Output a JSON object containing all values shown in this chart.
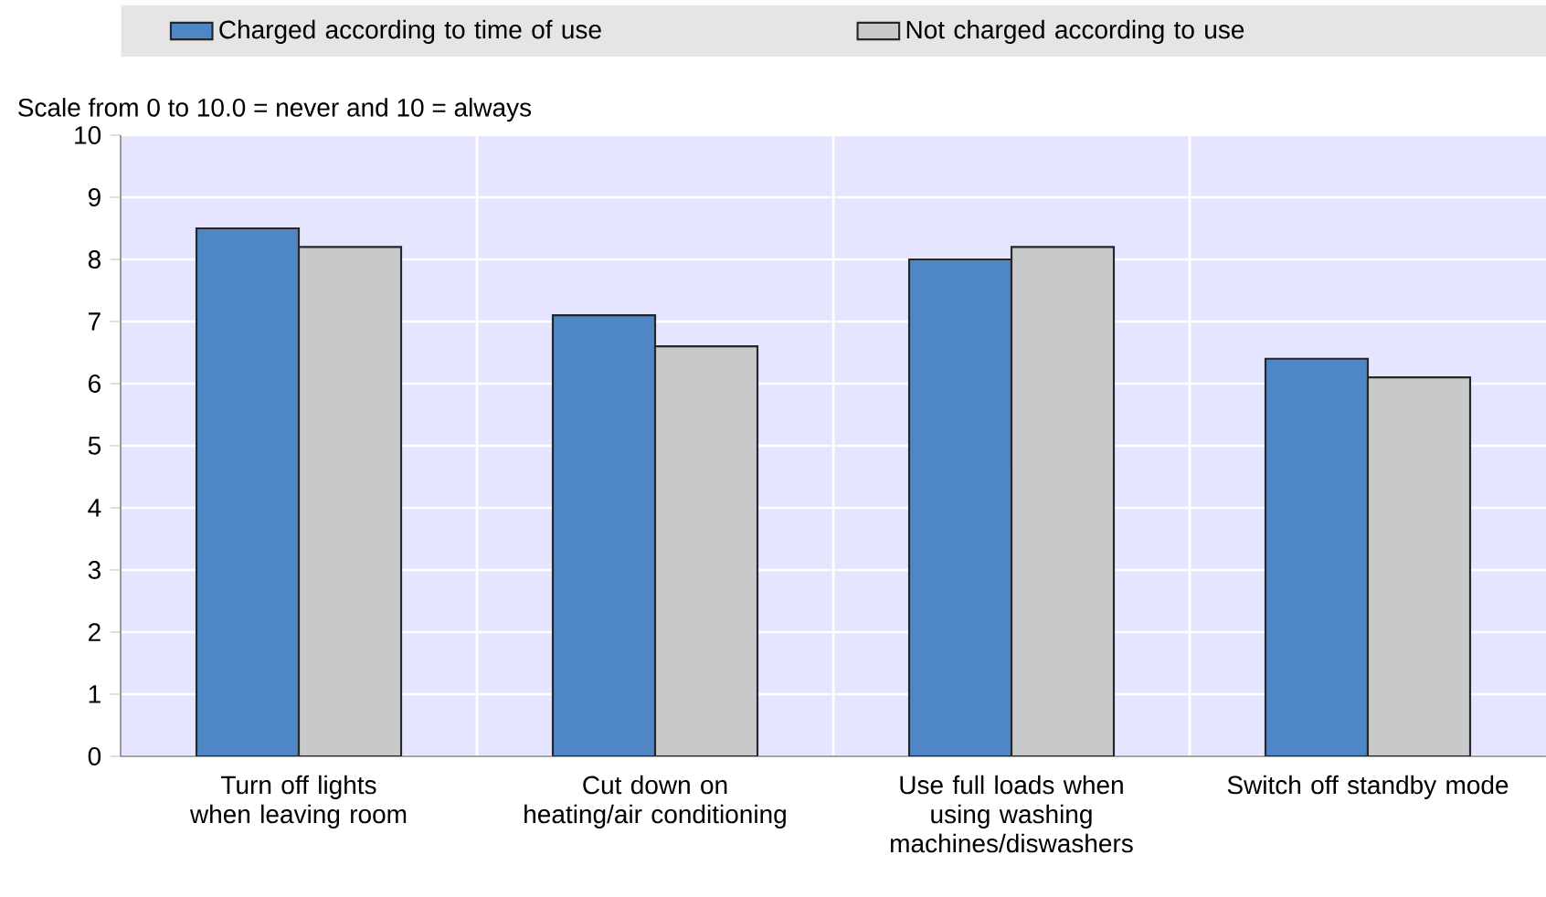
{
  "chart_data": {
    "type": "bar",
    "ylabel": "Scale from 0 to 10.0 = never and 10 = always",
    "categories": [
      "Turn off lights when leaving room",
      "Cut down on heating/air conditioning",
      "Use full loads when using washing machines/diswashers",
      "Switch off standby mode"
    ],
    "series": [
      {
        "name": "Charged according to time of use",
        "color": "#4e86c6",
        "values": [
          8.5,
          7.1,
          8.0,
          6.4
        ]
      },
      {
        "name": "Not charged according to use",
        "color": "#c8c9cb",
        "values": [
          8.2,
          6.6,
          8.2,
          6.1
        ]
      }
    ],
    "ylim": [
      0,
      10
    ],
    "yticks": [
      0,
      1,
      2,
      3,
      4,
      5,
      6,
      7,
      8,
      9,
      10
    ],
    "grid": true,
    "legend": "top"
  }
}
